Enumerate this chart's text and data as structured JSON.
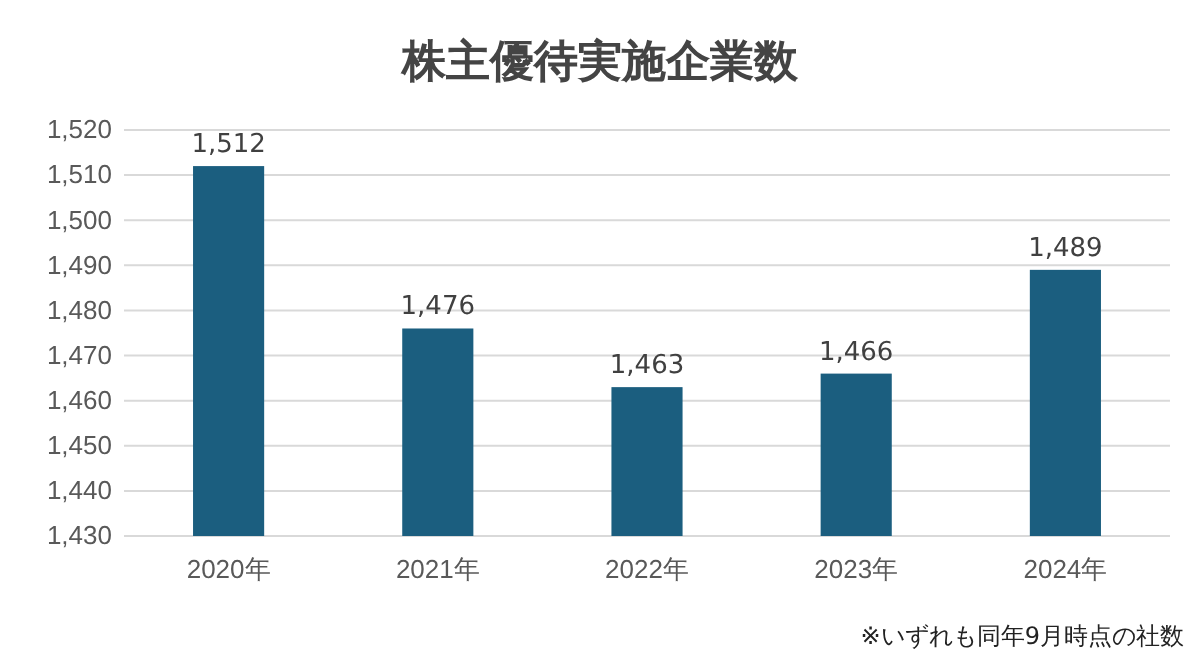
{
  "chart_data": {
    "type": "bar",
    "title": "株主優待実施企業数",
    "categories": [
      "2020年",
      "2021年",
      "2022年",
      "2023年",
      "2024年"
    ],
    "values": [
      1512,
      1476,
      1463,
      1466,
      1489
    ],
    "value_labels": [
      "1,512",
      "1,476",
      "1,463",
      "1,466",
      "1,489"
    ],
    "color": "#1b5e7f",
    "ylim": [
      1430,
      1520
    ],
    "yticks": [
      {
        "value": 1430,
        "label": "1,430"
      },
      {
        "value": 1440,
        "label": "1,440"
      },
      {
        "value": 1450,
        "label": "1,450"
      },
      {
        "value": 1460,
        "label": "1,460"
      },
      {
        "value": 1470,
        "label": "1,470"
      },
      {
        "value": 1480,
        "label": "1,480"
      },
      {
        "value": 1490,
        "label": "1,490"
      },
      {
        "value": 1500,
        "label": "1,500"
      },
      {
        "value": 1510,
        "label": "1,510"
      },
      {
        "value": 1520,
        "label": "1,520"
      }
    ],
    "grid": "y",
    "annotations": [
      "※いずれも同年9月時点の社数"
    ]
  }
}
